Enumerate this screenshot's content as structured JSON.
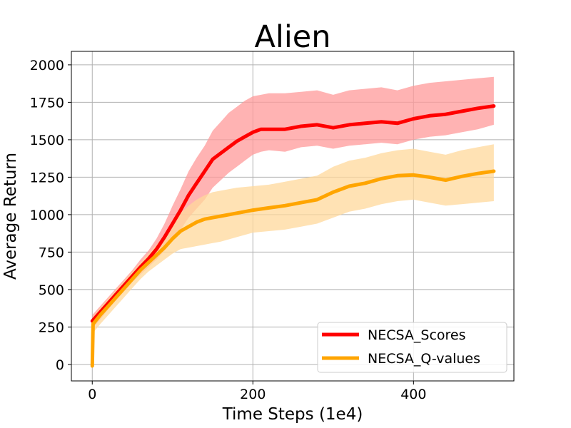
{
  "chart_data": {
    "type": "line",
    "title": "Alien",
    "xlabel": "Time Steps (1e4)",
    "ylabel": "Average Return",
    "xlim": [
      -26,
      525
    ],
    "ylim": [
      -110,
      2090
    ],
    "xticks": [
      0,
      200,
      400
    ],
    "yticks": [
      0,
      250,
      500,
      750,
      1000,
      1250,
      1500,
      1750,
      2000
    ],
    "xtick_labels": [
      "0",
      "200",
      "400"
    ],
    "ytick_labels": [
      "0",
      "250",
      "500",
      "750",
      "1000",
      "1250",
      "1500",
      "1750",
      "2000"
    ],
    "grid": true,
    "legend_position": "lower-right",
    "series": [
      {
        "name": "NECSA_Scores",
        "color": "#ff0000",
        "band_color": "#ff9a9a",
        "x": [
          0,
          10,
          20,
          30,
          40,
          50,
          60,
          70,
          80,
          90,
          100,
          110,
          120,
          130,
          140,
          150,
          160,
          170,
          180,
          190,
          200,
          210,
          220,
          240,
          260,
          280,
          300,
          320,
          340,
          360,
          380,
          400,
          420,
          440,
          460,
          480,
          500
        ],
        "y": [
          290,
          350,
          410,
          470,
          530,
          590,
          650,
          705,
          770,
          850,
          940,
          1030,
          1130,
          1210,
          1290,
          1370,
          1410,
          1450,
          1490,
          1520,
          1550,
          1570,
          1570,
          1570,
          1590,
          1600,
          1580,
          1600,
          1610,
          1620,
          1610,
          1640,
          1660,
          1670,
          1690,
          1710,
          1725
        ],
        "band_lower": [
          240,
          300,
          370,
          430,
          490,
          550,
          600,
          650,
          700,
          760,
          830,
          900,
          980,
          1040,
          1100,
          1180,
          1230,
          1280,
          1320,
          1360,
          1400,
          1420,
          1430,
          1420,
          1450,
          1460,
          1440,
          1460,
          1470,
          1480,
          1470,
          1500,
          1520,
          1530,
          1550,
          1570,
          1600
        ],
        "band_upper": [
          330,
          390,
          450,
          510,
          570,
          630,
          700,
          760,
          840,
          940,
          1060,
          1170,
          1290,
          1380,
          1460,
          1560,
          1620,
          1680,
          1720,
          1760,
          1790,
          1800,
          1810,
          1810,
          1820,
          1830,
          1800,
          1830,
          1840,
          1850,
          1830,
          1860,
          1880,
          1890,
          1900,
          1910,
          1920
        ]
      },
      {
        "name": "NECSA_Q-values",
        "color": "#ffa500",
        "band_color": "#ffd89b",
        "x": [
          0,
          1,
          10,
          20,
          30,
          40,
          50,
          60,
          70,
          80,
          90,
          100,
          110,
          120,
          130,
          140,
          150,
          160,
          180,
          200,
          220,
          240,
          260,
          280,
          300,
          320,
          340,
          360,
          380,
          400,
          420,
          440,
          460,
          480,
          500
        ],
        "y": [
          -10,
          270,
          330,
          390,
          450,
          510,
          570,
          630,
          680,
          730,
          780,
          840,
          890,
          920,
          950,
          970,
          980,
          990,
          1010,
          1030,
          1045,
          1060,
          1080,
          1100,
          1150,
          1190,
          1210,
          1240,
          1260,
          1265,
          1250,
          1230,
          1255,
          1275,
          1290
        ],
        "band_lower": [
          -10,
          210,
          270,
          330,
          390,
          450,
          510,
          570,
          620,
          660,
          700,
          740,
          770,
          780,
          790,
          800,
          810,
          820,
          850,
          880,
          890,
          900,
          920,
          940,
          980,
          1020,
          1040,
          1070,
          1090,
          1100,
          1080,
          1060,
          1070,
          1080,
          1090
        ],
        "band_upper": [
          -10,
          320,
          380,
          440,
          500,
          560,
          620,
          680,
          740,
          800,
          860,
          940,
          1010,
          1060,
          1100,
          1130,
          1150,
          1160,
          1180,
          1190,
          1200,
          1220,
          1240,
          1260,
          1320,
          1360,
          1380,
          1410,
          1430,
          1440,
          1420,
          1400,
          1430,
          1450,
          1470
        ]
      }
    ]
  }
}
